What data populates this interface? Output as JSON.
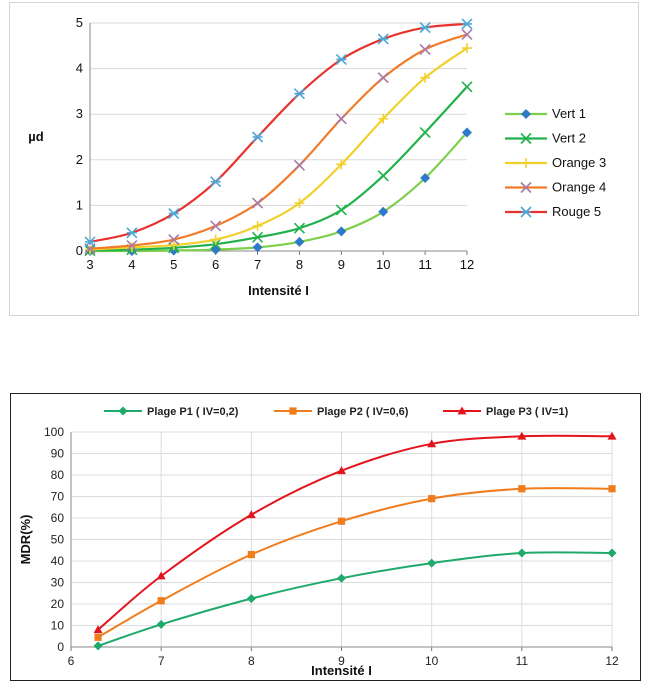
{
  "chart_data": [
    {
      "type": "line",
      "title": "",
      "xlabel": "Intensité I",
      "ylabel": "µd",
      "xlim": [
        3,
        12
      ],
      "ylim": [
        0,
        5
      ],
      "x_ticks": [
        "3",
        "4",
        "5",
        "6",
        "7",
        "8",
        "9",
        "10",
        "11",
        "12"
      ],
      "y_ticks": [
        "0",
        "1",
        "2",
        "3",
        "4",
        "5"
      ],
      "grid": "horizontal",
      "legend_position": "right",
      "series": [
        {
          "name": "Vert 1",
          "color": "#7ccf4a",
          "marker": "diamond",
          "marker_color": "#2f79c9",
          "x": [
            3,
            4,
            5,
            6,
            7,
            8,
            9,
            10,
            11,
            12
          ],
          "y": [
            0.0,
            0.0,
            0.01,
            0.03,
            0.08,
            0.2,
            0.43,
            0.86,
            1.6,
            2.6
          ]
        },
        {
          "name": "Vert 2",
          "color": "#22b14c",
          "marker": "x",
          "x": [
            3,
            4,
            5,
            6,
            7,
            8,
            9,
            10,
            11,
            12
          ],
          "y": [
            0.01,
            0.03,
            0.07,
            0.15,
            0.3,
            0.5,
            0.9,
            1.65,
            2.6,
            3.6
          ]
        },
        {
          "name": "Orange 3",
          "color": "#f2d02c",
          "marker": "plus",
          "x": [
            3,
            4,
            5,
            6,
            7,
            8,
            9,
            10,
            11,
            12
          ],
          "y": [
            0.03,
            0.08,
            0.13,
            0.25,
            0.55,
            1.05,
            1.9,
            2.9,
            3.8,
            4.45
          ]
        },
        {
          "name": "Orange 4",
          "color": "#f07c2a",
          "marker": "x",
          "marker_color": "#a77aa8",
          "x": [
            3,
            4,
            5,
            6,
            7,
            8,
            9,
            10,
            11,
            12
          ],
          "y": [
            0.05,
            0.12,
            0.25,
            0.55,
            1.05,
            1.88,
            2.9,
            3.8,
            4.42,
            4.75
          ]
        },
        {
          "name": "Rouge 5",
          "color": "#e8322e",
          "marker": "star",
          "marker_color": "#4aa8d8",
          "x": [
            3,
            4,
            5,
            6,
            7,
            8,
            9,
            10,
            11,
            12
          ],
          "y": [
            0.2,
            0.4,
            0.82,
            1.52,
            2.5,
            3.45,
            4.2,
            4.65,
            4.9,
            4.98
          ]
        }
      ]
    },
    {
      "type": "line",
      "title": "",
      "xlabel": "Intensité I",
      "ylabel": "MDR(%)",
      "xlim": [
        6,
        12
      ],
      "ylim": [
        0,
        100
      ],
      "x_ticks": [
        "6",
        "7",
        "8",
        "9",
        "10",
        "11",
        "12"
      ],
      "y_ticks": [
        "0",
        "10",
        "20",
        "30",
        "40",
        "50",
        "60",
        "70",
        "80",
        "90",
        "100"
      ],
      "grid": "both",
      "legend_position": "top",
      "series": [
        {
          "name": "Plage P1 ( IV=0,2)",
          "color": "#1fa96a",
          "marker": "diamond",
          "x": [
            6.3,
            7,
            8,
            9,
            10,
            11,
            12
          ],
          "y": [
            0.5,
            10.5,
            22.5,
            32,
            39,
            43.7,
            43.7
          ]
        },
        {
          "name": "Plage P2 ( IV=0,6)",
          "color": "#f07c1c",
          "marker": "square",
          "x": [
            6.3,
            7,
            8,
            9,
            10,
            11,
            12
          ],
          "y": [
            4.5,
            21.5,
            43,
            58.5,
            69,
            73.6,
            73.6
          ]
        },
        {
          "name": "Plage P3 ( IV=1)",
          "color": "#e3141c",
          "marker": "triangle",
          "x": [
            6.3,
            7,
            8,
            9,
            10,
            11,
            12
          ],
          "y": [
            8,
            33,
            61.5,
            82,
            94.5,
            98,
            98
          ]
        }
      ]
    }
  ]
}
